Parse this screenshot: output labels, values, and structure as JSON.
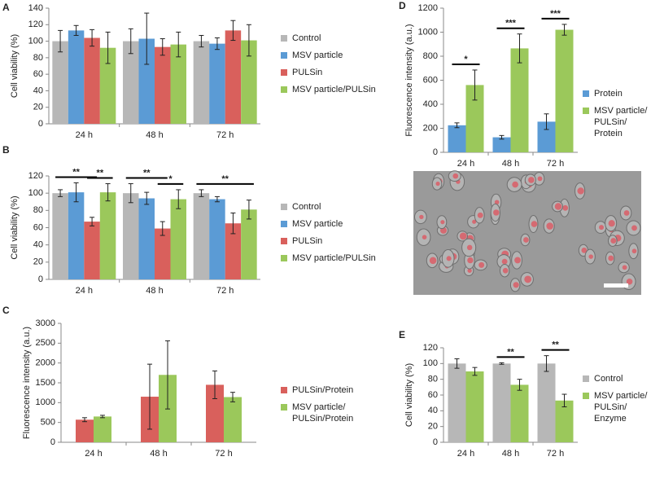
{
  "chart_data": [
    {
      "type": "bar",
      "label": "A",
      "ylabel": "Cell viability (%)",
      "categories": [
        "24 h",
        "48 h",
        "72 h"
      ],
      "ylim": [
        0,
        140
      ],
      "yticks": [
        0,
        20,
        40,
        60,
        80,
        100,
        120,
        140
      ],
      "series": [
        {
          "name": "Control",
          "color": "#b7b7b7",
          "values": [
            100,
            100,
            100
          ],
          "errors": [
            13,
            15,
            7
          ]
        },
        {
          "name": "MSV particle",
          "color": "#5b9bd5",
          "values": [
            113,
            103,
            97
          ],
          "errors": [
            6,
            31,
            7
          ]
        },
        {
          "name": "PULSin",
          "color": "#d9605c",
          "values": [
            104,
            93,
            113
          ],
          "errors": [
            10,
            10,
            12
          ]
        },
        {
          "name": "MSV particle/PULSin",
          "color": "#9bc85b",
          "values": [
            92,
            96,
            101
          ],
          "errors": [
            19,
            15,
            19
          ]
        }
      ],
      "annotations": []
    },
    {
      "type": "bar",
      "label": "B",
      "ylabel": "Cell viability (%)",
      "categories": [
        "24 h",
        "48 h",
        "72 h"
      ],
      "ylim": [
        0,
        120
      ],
      "yticks": [
        0,
        20,
        40,
        60,
        80,
        100,
        120
      ],
      "series": [
        {
          "name": "Control",
          "color": "#b7b7b7",
          "values": [
            100,
            100,
            100
          ],
          "errors": [
            4,
            11,
            4
          ]
        },
        {
          "name": "MSV particle",
          "color": "#5b9bd5",
          "values": [
            101,
            94,
            93
          ],
          "errors": [
            11,
            7,
            3
          ]
        },
        {
          "name": "PULSin",
          "color": "#d9605c",
          "values": [
            67,
            59,
            65
          ],
          "errors": [
            5,
            8,
            12
          ]
        },
        {
          "name": "MSV particle/PULSin",
          "color": "#9bc85b",
          "values": [
            101,
            93,
            81
          ],
          "errors": [
            10,
            11,
            11
          ]
        }
      ],
      "annotations": [
        {
          "text": "**",
          "category": "24 h",
          "series": [
            "Control",
            "PULSin"
          ]
        },
        {
          "text": "**",
          "category": "24 h",
          "series": [
            "PULSin",
            "MSV particle/PULSin"
          ]
        },
        {
          "text": "**",
          "category": "48 h",
          "series": [
            "Control",
            "PULSin"
          ]
        },
        {
          "text": "*",
          "category": "48 h",
          "series": [
            "PULSin",
            "MSV particle/PULSin"
          ]
        },
        {
          "text": "**",
          "category": "72 h",
          "series": [
            "Control",
            "MSV particle/PULSin"
          ]
        }
      ]
    },
    {
      "type": "bar",
      "label": "C",
      "ylabel": "Fluorescence intensity (a.u.)",
      "categories": [
        "24 h",
        "48 h",
        "72 h"
      ],
      "ylim": [
        0,
        3000
      ],
      "yticks": [
        0,
        500,
        1000,
        1500,
        2000,
        2500,
        3000
      ],
      "series": [
        {
          "name": "PULSin/Protein",
          "color": "#d9605c",
          "values": [
            570,
            1150,
            1450
          ],
          "errors": [
            50,
            820,
            350
          ]
        },
        {
          "name": "MSV particle/\nPULSin/Protein",
          "color": "#9bc85b",
          "values": [
            650,
            1700,
            1140
          ],
          "errors": [
            30,
            860,
            120
          ]
        }
      ],
      "annotations": []
    },
    {
      "type": "bar",
      "label": "D",
      "ylabel": "Fluorescence intensity (a.u.)",
      "categories": [
        "24 h",
        "48 h",
        "72 h"
      ],
      "ylim": [
        0,
        1200
      ],
      "yticks": [
        0,
        200,
        400,
        600,
        800,
        1000,
        1200
      ],
      "series": [
        {
          "name": "Protein",
          "color": "#5b9bd5",
          "values": [
            225,
            125,
            255
          ],
          "errors": [
            20,
            15,
            65
          ]
        },
        {
          "name": "MSV particle/\nPULSin/\nProtein",
          "color": "#9bc85b",
          "values": [
            560,
            865,
            1020
          ],
          "errors": [
            125,
            120,
            45
          ]
        }
      ],
      "annotations": [
        {
          "text": "*",
          "category": "24 h",
          "series": [
            "Protein",
            "MSV particle/\nPULSin/\nProtein"
          ]
        },
        {
          "text": "***",
          "category": "48 h",
          "series": [
            "Protein",
            "MSV particle/\nPULSin/\nProtein"
          ]
        },
        {
          "text": "***",
          "category": "72 h",
          "series": [
            "Protein",
            "MSV particle/\nPULSin/\nProtein"
          ]
        }
      ]
    },
    {
      "type": "bar",
      "label": "E",
      "ylabel": "Cell viability (%)",
      "categories": [
        "24 h",
        "48 h",
        "72 h"
      ],
      "ylim": [
        0,
        120
      ],
      "yticks": [
        0,
        20,
        40,
        60,
        80,
        100,
        120
      ],
      "series": [
        {
          "name": "Control",
          "color": "#b7b7b7",
          "values": [
            100,
            100,
            100
          ],
          "errors": [
            6,
            1,
            10
          ]
        },
        {
          "name": "MSV particle/\nPULSin/\nEnzyme",
          "color": "#9bc85b",
          "values": [
            90,
            73,
            53
          ],
          "errors": [
            5,
            7,
            8
          ]
        }
      ],
      "annotations": [
        {
          "text": "**",
          "category": "48 h",
          "series": [
            "Control",
            "MSV particle/\nPULSin/\nEnzyme"
          ]
        },
        {
          "text": "**",
          "category": "72 h",
          "series": [
            "Control",
            "MSV particle/\nPULSin/\nEnzyme"
          ]
        }
      ]
    }
  ]
}
